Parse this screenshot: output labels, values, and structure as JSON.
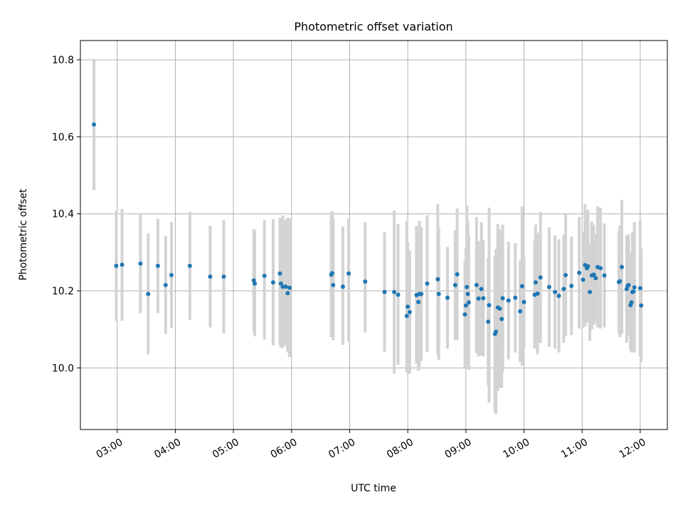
{
  "chart_data": {
    "type": "scatter",
    "title": "Photometric offset variation",
    "xlabel": "UTC time",
    "ylabel": "Photometric offset",
    "grid": true,
    "x_ticks": [
      "03:00",
      "04:00",
      "05:00",
      "06:00",
      "07:00",
      "08:00",
      "09:00",
      "10:00",
      "11:00",
      "12:00"
    ],
    "y_ticks": [
      "10.0",
      "10.2",
      "10.4",
      "10.6",
      "10.8"
    ],
    "xlim": [
      "02:22",
      "12:28"
    ],
    "ylim": [
      9.84,
      10.85
    ],
    "marker_color": "#1f77b4",
    "errorbar_color": "#d3d3d3",
    "series": [
      {
        "x": [
          "02:36",
          "02:59",
          "03:05",
          "03:24",
          "03:32",
          "03:42",
          "03:50",
          "03:56",
          "04:15",
          "04:36",
          "04:50",
          "05:21",
          "05:22",
          "05:32",
          "05:41",
          "05:48",
          "05:49",
          "05:51",
          "05:54",
          "05:56",
          "05:58",
          "06:41",
          "06:42",
          "06:43",
          "06:53",
          "06:59",
          "07:16",
          "07:36",
          "07:46",
          "07:50",
          "07:59",
          "08:00",
          "08:02",
          "08:09",
          "08:11",
          "08:12",
          "08:14",
          "08:20",
          "08:31",
          "08:32",
          "08:41",
          "08:49",
          "08:51",
          "08:59",
          "09:00",
          "09:01",
          "09:02",
          "09:03",
          "09:11",
          "09:13",
          "09:16",
          "09:18",
          "09:23",
          "09:24",
          "09:30",
          "09:31",
          "09:33",
          "09:35",
          "09:37",
          "09:38",
          "09:44",
          "09:51",
          "09:56",
          "09:58",
          "10:00",
          "10:11",
          "10:12",
          "10:14",
          "10:17",
          "10:26",
          "10:32",
          "10:36",
          "10:41",
          "10:43",
          "10:49",
          "10:57",
          "11:01",
          "11:03",
          "11:05",
          "11:06",
          "11:08",
          "11:10",
          "11:12",
          "11:14",
          "11:16",
          "11:19",
          "11:23",
          "11:38",
          "11:39",
          "11:41",
          "11:46",
          "11:47",
          "11:48",
          "11:50",
          "11:51",
          "11:52",
          "11:53",
          "11:54",
          "12:00",
          "12:01"
        ],
        "y": [
          10.632,
          10.265,
          10.268,
          10.271,
          10.192,
          10.265,
          10.215,
          10.241,
          10.265,
          10.237,
          10.237,
          10.227,
          10.219,
          10.239,
          10.222,
          10.245,
          10.219,
          10.211,
          10.211,
          10.194,
          10.208,
          10.242,
          10.246,
          10.215,
          10.211,
          10.245,
          10.224,
          10.197,
          10.197,
          10.19,
          10.135,
          10.159,
          10.145,
          10.189,
          10.171,
          10.192,
          10.192,
          10.219,
          10.23,
          10.192,
          10.182,
          10.215,
          10.243,
          10.139,
          10.162,
          10.21,
          10.192,
          10.17,
          10.215,
          10.18,
          10.205,
          10.181,
          10.12,
          10.163,
          10.088,
          10.094,
          10.157,
          10.154,
          10.127,
          10.181,
          10.175,
          10.182,
          10.147,
          10.212,
          10.171,
          10.19,
          10.222,
          10.193,
          10.235,
          10.21,
          10.197,
          10.187,
          10.205,
          10.241,
          10.213,
          10.247,
          10.229,
          10.267,
          10.259,
          10.264,
          10.197,
          10.24,
          10.242,
          10.233,
          10.262,
          10.259,
          10.24,
          10.223,
          10.225,
          10.262,
          10.205,
          10.213,
          10.215,
          10.163,
          10.17,
          10.197,
          10.198,
          10.209,
          10.207,
          10.162
        ],
        "err_low": [
          10.462,
          10.122,
          10.122,
          10.142,
          10.035,
          10.142,
          10.088,
          10.103,
          10.125,
          10.105,
          10.09,
          10.093,
          10.082,
          10.074,
          10.058,
          10.06,
          10.052,
          10.052,
          10.058,
          10.04,
          10.028,
          10.08,
          10.082,
          10.072,
          10.06,
          10.068,
          10.092,
          10.042,
          9.985,
          10.008,
          9.988,
          9.992,
          9.985,
          10.01,
          9.992,
          10.002,
          10.018,
          10.042,
          10.035,
          10.02,
          10.05,
          10.072,
          10.072,
          10.0,
          10.012,
          9.998,
          10.002,
          9.995,
          10.038,
          10.03,
          10.032,
          10.03,
          9.955,
          9.91,
          9.885,
          9.88,
          9.94,
          9.948,
          9.948,
          9.99,
          10.022,
          10.04,
          10.015,
          10.005,
          10.052,
          10.05,
          10.072,
          10.035,
          10.065,
          10.055,
          10.05,
          10.04,
          10.065,
          10.083,
          10.085,
          10.102,
          10.105,
          10.108,
          10.128,
          10.117,
          10.07,
          10.1,
          10.112,
          10.12,
          10.105,
          10.102,
          10.105,
          10.09,
          10.08,
          10.088,
          10.065,
          10.09,
          10.083,
          10.045,
          10.04,
          10.042,
          10.042,
          10.04,
          10.03,
          10.015
        ],
        "err_high": [
          10.802,
          10.408,
          10.413,
          10.4,
          10.349,
          10.387,
          10.342,
          10.379,
          10.405,
          10.369,
          10.384,
          10.361,
          10.356,
          10.384,
          10.386,
          10.39,
          10.386,
          10.396,
          10.384,
          10.39,
          10.388,
          10.404,
          10.407,
          10.388,
          10.367,
          10.387,
          10.378,
          10.352,
          10.409,
          10.374,
          10.382,
          10.326,
          10.305,
          10.368,
          10.35,
          10.382,
          10.366,
          10.396,
          10.425,
          10.364,
          10.314,
          10.358,
          10.414,
          10.278,
          10.312,
          10.422,
          10.382,
          10.345,
          10.392,
          10.33,
          10.378,
          10.332,
          10.285,
          10.416,
          10.291,
          10.308,
          10.374,
          10.36,
          10.306,
          10.372,
          10.328,
          10.324,
          10.279,
          10.419,
          10.29,
          10.33,
          10.372,
          10.351,
          10.405,
          10.365,
          10.344,
          10.334,
          10.345,
          10.399,
          10.341,
          10.392,
          10.353,
          10.426,
          10.39,
          10.411,
          10.324,
          10.38,
          10.372,
          10.346,
          10.419,
          10.416,
          10.375,
          10.356,
          10.37,
          10.436,
          10.345,
          10.336,
          10.347,
          10.281,
          10.3,
          10.352,
          10.354,
          10.378,
          10.384,
          10.309
        ]
      }
    ]
  }
}
